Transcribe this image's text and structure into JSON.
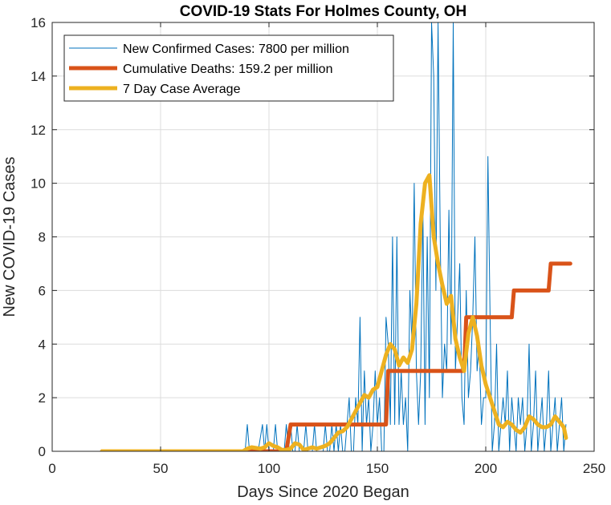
{
  "chart_data": {
    "type": "line",
    "title": "COVID-19 Stats For Holmes County, OH",
    "xlabel": "Days Since 2020 Began",
    "ylabel": "New COVID-19 Cases",
    "xlim": [
      0,
      250
    ],
    "ylim": [
      0,
      16
    ],
    "xticks": [
      0,
      50,
      100,
      150,
      200,
      250
    ],
    "yticks": [
      0,
      2,
      4,
      6,
      8,
      10,
      12,
      14,
      16
    ],
    "grid": true,
    "legend_position": "top-left",
    "series": [
      {
        "name": "New Confirmed Cases: 7800 per million",
        "color": "#0072BD",
        "style": "thin",
        "x": [
          23,
          30,
          40,
          50,
          60,
          70,
          80,
          87,
          88,
          89,
          90,
          91,
          92,
          95,
          97,
          98,
          99,
          100,
          101,
          102,
          103,
          104,
          105,
          106,
          107,
          108,
          109,
          110,
          111,
          112,
          113,
          114,
          115,
          116,
          117,
          118,
          119,
          120,
          121,
          122,
          123,
          124,
          125,
          126,
          127,
          128,
          129,
          130,
          131,
          132,
          133,
          134,
          135,
          136,
          137,
          138,
          139,
          140,
          141,
          142,
          143,
          144,
          145,
          146,
          147,
          148,
          149,
          150,
          151,
          152,
          153,
          154,
          155,
          156,
          157,
          158,
          159,
          160,
          161,
          162,
          163,
          164,
          165,
          166,
          167,
          168,
          169,
          170,
          171,
          172,
          173,
          174,
          175,
          176,
          177,
          178,
          179,
          180,
          181,
          182,
          183,
          184,
          185,
          186,
          187,
          188,
          189,
          190,
          191,
          192,
          193,
          194,
          195,
          196,
          197,
          198,
          199,
          200,
          201,
          202,
          203,
          204,
          205,
          206,
          207,
          208,
          209,
          210,
          211,
          212,
          213,
          214,
          215,
          216,
          217,
          218,
          219,
          220,
          221,
          222,
          223,
          224,
          225,
          226,
          227,
          228,
          229,
          230,
          231,
          232,
          233,
          234,
          235,
          236,
          237
        ],
        "y": [
          0,
          0,
          0,
          0,
          0,
          0,
          0,
          0,
          0,
          0,
          1,
          0,
          0,
          0,
          1,
          0,
          1,
          0,
          0,
          0,
          1,
          0,
          0,
          0,
          0,
          1,
          0,
          1,
          0,
          0,
          1,
          0,
          0,
          0,
          1,
          0,
          0,
          0,
          1,
          0,
          0,
          0,
          0,
          1,
          0,
          0,
          1,
          0,
          1,
          0,
          1,
          0,
          0,
          1,
          2,
          0,
          0,
          2,
          1,
          5,
          0,
          3,
          1,
          2,
          0,
          1,
          3,
          1,
          2,
          0,
          0,
          5,
          4,
          1,
          8,
          1,
          8,
          1,
          3,
          1,
          2,
          0,
          6,
          4,
          10,
          3,
          1,
          3,
          9,
          1,
          8,
          2,
          16,
          14,
          6,
          16,
          8,
          2,
          4,
          3,
          9,
          4,
          16,
          3,
          5,
          7,
          2,
          1,
          6,
          2,
          3,
          5,
          8,
          3,
          4,
          1,
          2,
          2,
          11,
          5,
          0,
          1,
          4,
          0,
          1,
          2,
          1,
          3,
          0,
          2,
          1,
          0,
          2,
          1,
          2,
          0,
          1,
          4,
          0,
          1,
          3,
          0,
          1,
          2,
          0,
          1,
          3,
          0,
          1,
          2,
          0,
          1,
          2,
          0,
          1
        ]
      },
      {
        "name": "Cumulative Deaths: 159.2 per million",
        "color": "#D95319",
        "style": "thick",
        "x": [
          23,
          104,
          108,
          110,
          154,
          155,
          190,
          191,
          212,
          213,
          229,
          230,
          239
        ],
        "y": [
          0,
          0,
          0,
          1,
          1,
          3,
          3,
          5,
          5,
          6,
          6,
          7,
          7
        ]
      },
      {
        "name": "7 Day Case Average",
        "color": "#EDB120",
        "style": "thick",
        "x": [
          23,
          40,
          60,
          80,
          88,
          90,
          92,
          96,
          98,
          100,
          102,
          104,
          106,
          108,
          110,
          112,
          114,
          116,
          118,
          120,
          122,
          124,
          126,
          128,
          130,
          132,
          134,
          136,
          138,
          140,
          142,
          144,
          146,
          148,
          150,
          152,
          154,
          156,
          158,
          160,
          162,
          164,
          166,
          168,
          170,
          172,
          174,
          176,
          178,
          180,
          182,
          184,
          186,
          188,
          190,
          192,
          194,
          196,
          198,
          200,
          202,
          204,
          206,
          208,
          210,
          212,
          214,
          216,
          218,
          220,
          222,
          224,
          226,
          228,
          230,
          232,
          234,
          236,
          237
        ],
        "y": [
          0,
          0,
          0,
          0,
          0,
          0.1,
          0.15,
          0.1,
          0.15,
          0.3,
          0.2,
          0.15,
          0.05,
          0.05,
          0.1,
          0.3,
          0.25,
          0.05,
          0.1,
          0.15,
          0.1,
          0.15,
          0.2,
          0.3,
          0.5,
          0.7,
          0.75,
          0.9,
          1.2,
          1.5,
          1.8,
          2.1,
          2.0,
          2.3,
          2.4,
          3.0,
          3.6,
          4.0,
          3.8,
          3.2,
          3.5,
          3.3,
          3.8,
          5.5,
          8.5,
          10.0,
          10.3,
          8.0,
          7.0,
          6.2,
          5.5,
          5.8,
          4.2,
          3.5,
          3.0,
          4.4,
          5.0,
          4.3,
          3.2,
          2.5,
          2.0,
          1.5,
          1.0,
          0.9,
          1.1,
          1.0,
          0.8,
          0.7,
          0.9,
          1.3,
          1.2,
          1.0,
          0.9,
          0.9,
          1.0,
          1.3,
          1.1,
          0.9,
          0.5
        ]
      }
    ]
  }
}
